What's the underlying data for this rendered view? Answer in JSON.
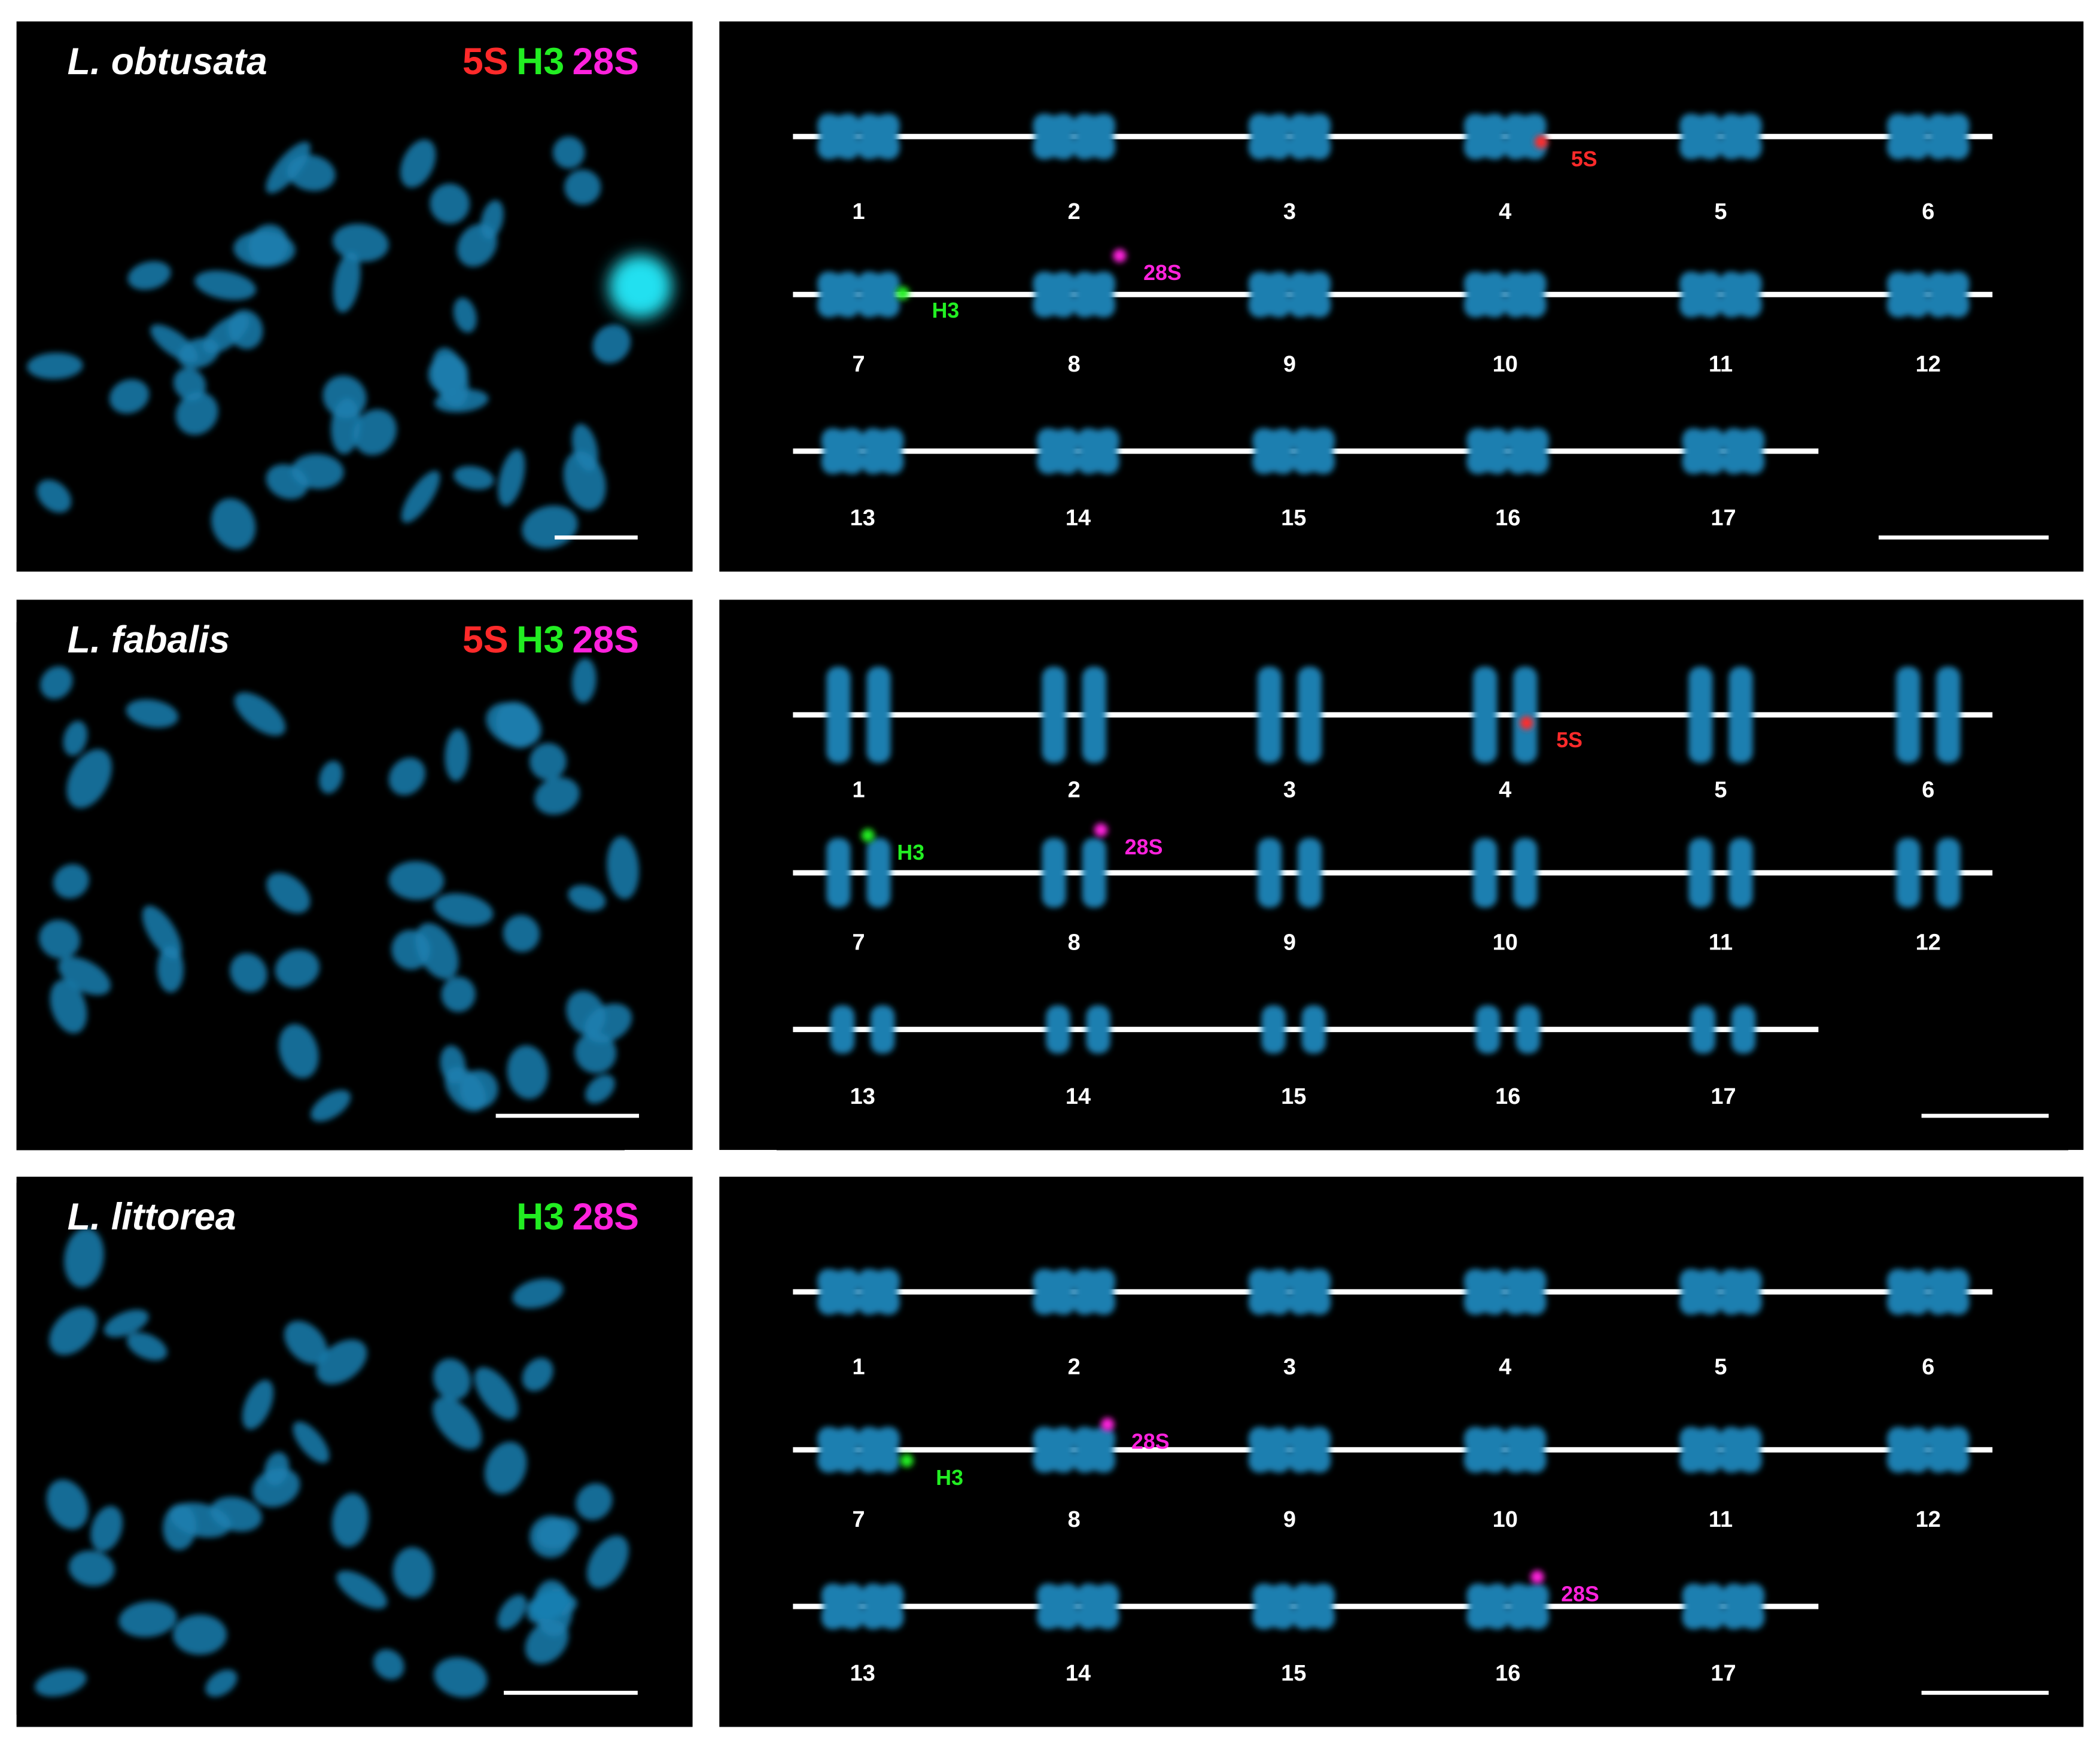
{
  "panels": [
    {
      "species": "L. obtusata",
      "probes": [
        {
          "name": "5S",
          "color": "#ff2a2a"
        },
        {
          "name": "H3",
          "color": "#22ee22"
        },
        {
          "name": "28S",
          "color": "#ff22dd"
        }
      ],
      "karyotype": [
        [
          "1",
          "2",
          "3",
          "4",
          "5",
          "6"
        ],
        [
          "7",
          "8",
          "9",
          "10",
          "11",
          "12"
        ],
        [
          "13",
          "14",
          "15",
          "16",
          "17"
        ]
      ],
      "annotations": [
        {
          "text": "5S",
          "color": "#ff2a2a"
        },
        {
          "text": "H3",
          "color": "#22ee22"
        },
        {
          "text": "28S",
          "color": "#ff22dd"
        }
      ]
    },
    {
      "species": "L. fabalis",
      "probes": [
        {
          "name": "5S",
          "color": "#ff2a2a"
        },
        {
          "name": "H3",
          "color": "#22ee22"
        },
        {
          "name": "28S",
          "color": "#ff22dd"
        }
      ],
      "karyotype": [
        [
          "1",
          "2",
          "3",
          "4",
          "5",
          "6"
        ],
        [
          "7",
          "8",
          "9",
          "10",
          "11",
          "12"
        ],
        [
          "13",
          "14",
          "15",
          "16",
          "17"
        ]
      ],
      "annotations": [
        {
          "text": "5S",
          "color": "#ff2a2a"
        },
        {
          "text": "H3",
          "color": "#22ee22"
        },
        {
          "text": "28S",
          "color": "#ff22dd"
        }
      ]
    },
    {
      "species": "L. littorea",
      "probes": [
        {
          "name": "H3",
          "color": "#22ee22"
        },
        {
          "name": "28S",
          "color": "#ff22dd"
        }
      ],
      "karyotype": [
        [
          "1",
          "2",
          "3",
          "4",
          "5",
          "6"
        ],
        [
          "7",
          "8",
          "9",
          "10",
          "11",
          "12"
        ],
        [
          "13",
          "14",
          "15",
          "16",
          "17"
        ]
      ],
      "annotations": [
        {
          "text": "H3",
          "color": "#22ee22"
        },
        {
          "text": "28S",
          "color": "#ff22dd"
        },
        {
          "text": "28S",
          "color": "#ff22dd"
        }
      ]
    }
  ]
}
